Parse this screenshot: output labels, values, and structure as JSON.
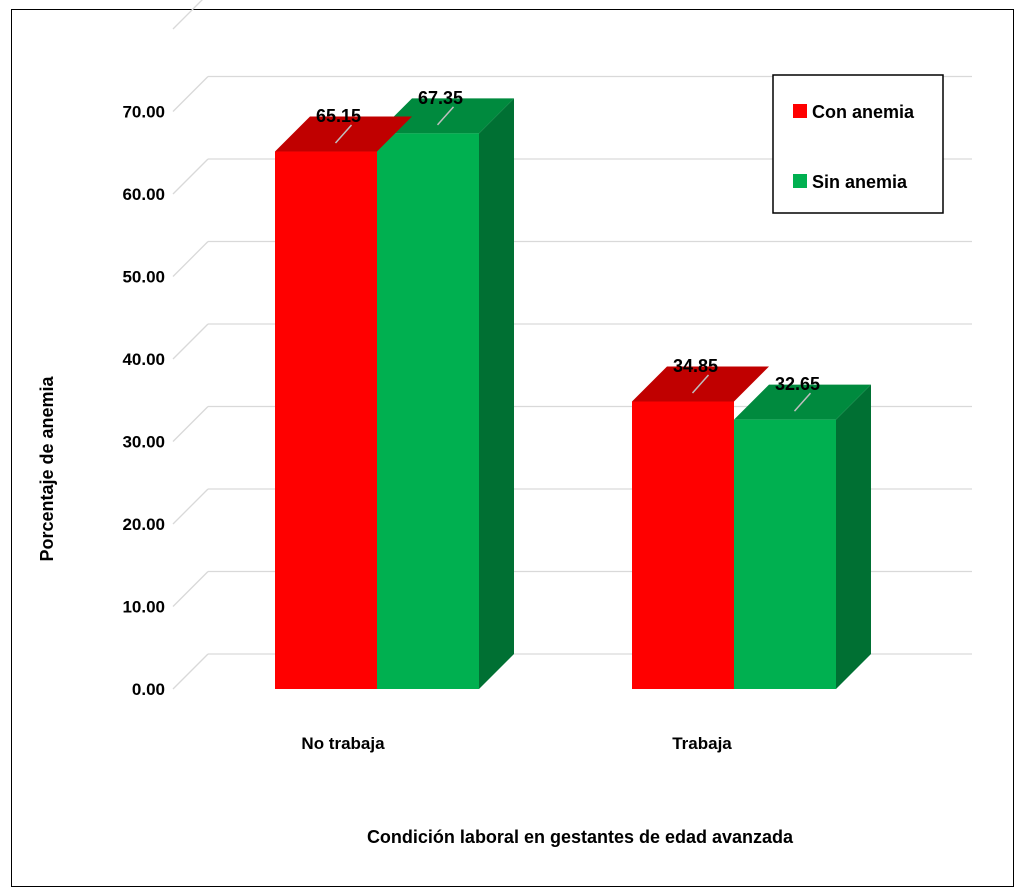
{
  "chart_data": {
    "type": "bar",
    "categories": [
      "No trabaja",
      "Trabaja"
    ],
    "series": [
      {
        "name": "Con anemia",
        "values": [
          65.15,
          34.85
        ],
        "color": "#ff0000",
        "top_color": "#c00000"
      },
      {
        "name": "Sin anemia",
        "values": [
          67.35,
          32.65
        ],
        "color": "#00b050",
        "side_color": "#007033",
        "top_color": "#008a3e"
      }
    ],
    "data_labels": [
      [
        "65.15",
        "34.85"
      ],
      [
        "67.35",
        "32.65"
      ]
    ],
    "yticks": [
      "0.00",
      "10.00",
      "20.00",
      "30.00",
      "40.00",
      "50.00",
      "60.00",
      "70.00"
    ],
    "ylim": [
      0,
      70
    ],
    "xlabel": "Condición laboral en gestantes de edad avanzada",
    "ylabel": "Porcentaje de anemia",
    "grid": true,
    "legend_position": "top-right",
    "style": "3d"
  }
}
